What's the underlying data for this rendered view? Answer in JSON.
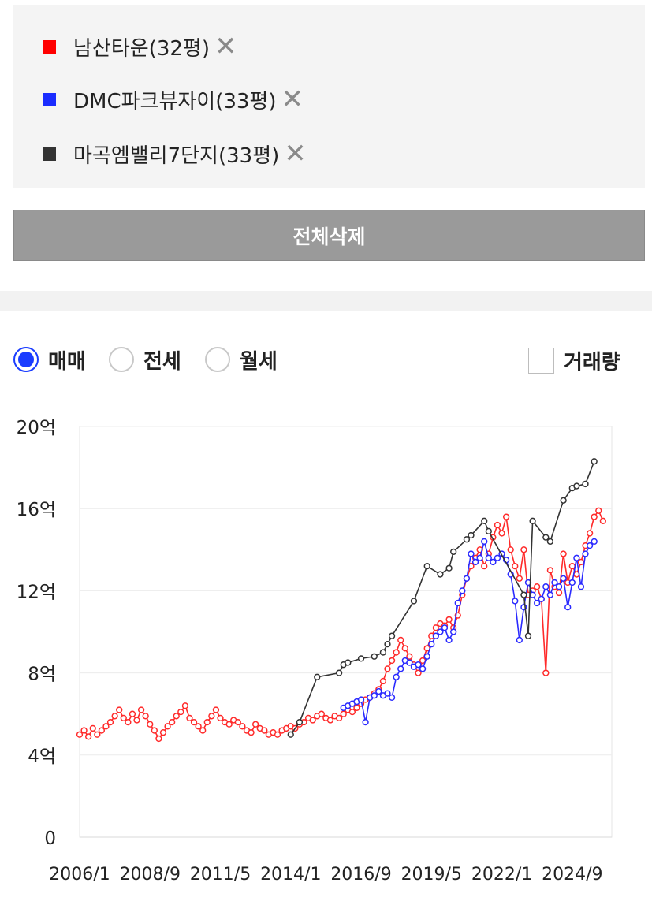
{
  "compare_list": {
    "items": [
      {
        "label": "남산타운(32평)",
        "color": "#ff0000",
        "remove_icon": "close-icon"
      },
      {
        "label": "DMC파크뷰자이(33평)",
        "color": "#1a2cff",
        "remove_icon": "close-icon"
      },
      {
        "label": "마곡엠밸리7단지(33평)",
        "color": "#333333",
        "remove_icon": "close-icon"
      }
    ],
    "clear_all_label": "전체삭제"
  },
  "controls": {
    "trade_types": [
      {
        "label": "매매",
        "checked": true
      },
      {
        "label": "전세",
        "checked": false
      },
      {
        "label": "월세",
        "checked": false
      }
    ],
    "volume": {
      "label": "거래량",
      "checked": false
    },
    "accent_color": "#1a3cff"
  },
  "chart_data": {
    "type": "line",
    "title": "",
    "xlabel": "",
    "ylabel": "",
    "xlim": [
      "2006/1",
      "2026/3"
    ],
    "ylim": [
      0,
      20
    ],
    "y_ticks": [
      {
        "value": 0,
        "label": "0"
      },
      {
        "value": 4,
        "label": "4억"
      },
      {
        "value": 8,
        "label": "8억"
      },
      {
        "value": 12,
        "label": "12억"
      },
      {
        "value": 16,
        "label": "16억"
      },
      {
        "value": 20,
        "label": "20억"
      }
    ],
    "x_ticks": [
      "2006/1",
      "2008/9",
      "2011/5",
      "2014/1",
      "2016/9",
      "2019/5",
      "2022/1",
      "2024/9"
    ],
    "grid": true,
    "series": [
      {
        "name": "남산타운(32평)",
        "color": "#ff2a2a",
        "marker": "circle-hollow",
        "points": [
          [
            "2006/1",
            5.0
          ],
          [
            "2006/3",
            5.2
          ],
          [
            "2006/5",
            4.9
          ],
          [
            "2006/7",
            5.3
          ],
          [
            "2006/9",
            5.0
          ],
          [
            "2006/11",
            5.2
          ],
          [
            "2007/1",
            5.4
          ],
          [
            "2007/3",
            5.6
          ],
          [
            "2007/5",
            5.9
          ],
          [
            "2007/7",
            6.2
          ],
          [
            "2007/9",
            5.8
          ],
          [
            "2007/11",
            5.6
          ],
          [
            "2008/1",
            6.0
          ],
          [
            "2008/3",
            5.7
          ],
          [
            "2008/5",
            6.2
          ],
          [
            "2008/7",
            5.9
          ],
          [
            "2008/9",
            5.5
          ],
          [
            "2008/11",
            5.2
          ],
          [
            "2009/1",
            4.8
          ],
          [
            "2009/3",
            5.1
          ],
          [
            "2009/5",
            5.4
          ],
          [
            "2009/7",
            5.6
          ],
          [
            "2009/9",
            5.9
          ],
          [
            "2009/11",
            6.1
          ],
          [
            "2010/1",
            6.4
          ],
          [
            "2010/3",
            5.8
          ],
          [
            "2010/5",
            5.6
          ],
          [
            "2010/7",
            5.4
          ],
          [
            "2010/9",
            5.2
          ],
          [
            "2010/11",
            5.6
          ],
          [
            "2011/1",
            5.9
          ],
          [
            "2011/3",
            6.2
          ],
          [
            "2011/5",
            5.8
          ],
          [
            "2011/7",
            5.6
          ],
          [
            "2011/9",
            5.5
          ],
          [
            "2011/11",
            5.7
          ],
          [
            "2012/1",
            5.6
          ],
          [
            "2012/3",
            5.4
          ],
          [
            "2012/5",
            5.2
          ],
          [
            "2012/7",
            5.1
          ],
          [
            "2012/9",
            5.5
          ],
          [
            "2012/11",
            5.3
          ],
          [
            "2013/1",
            5.2
          ],
          [
            "2013/3",
            5.0
          ],
          [
            "2013/5",
            5.1
          ],
          [
            "2013/7",
            5.0
          ],
          [
            "2013/9",
            5.2
          ],
          [
            "2013/11",
            5.3
          ],
          [
            "2014/1",
            5.4
          ],
          [
            "2014/3",
            5.3
          ],
          [
            "2014/5",
            5.5
          ],
          [
            "2014/7",
            5.6
          ],
          [
            "2014/9",
            5.8
          ],
          [
            "2014/11",
            5.7
          ],
          [
            "2015/1",
            5.9
          ],
          [
            "2015/3",
            6.0
          ],
          [
            "2015/5",
            5.8
          ],
          [
            "2015/7",
            5.7
          ],
          [
            "2015/9",
            5.9
          ],
          [
            "2015/11",
            5.8
          ],
          [
            "2016/1",
            6.0
          ],
          [
            "2016/3",
            6.2
          ],
          [
            "2016/5",
            6.1
          ],
          [
            "2016/7",
            6.3
          ],
          [
            "2016/9",
            6.5
          ],
          [
            "2016/11",
            6.7
          ],
          [
            "2017/1",
            6.8
          ],
          [
            "2017/3",
            7.0
          ],
          [
            "2017/5",
            7.2
          ],
          [
            "2017/7",
            7.6
          ],
          [
            "2017/9",
            8.2
          ],
          [
            "2017/11",
            8.6
          ],
          [
            "2018/1",
            9.0
          ],
          [
            "2018/3",
            9.6
          ],
          [
            "2018/5",
            9.2
          ],
          [
            "2018/7",
            8.8
          ],
          [
            "2018/9",
            8.4
          ],
          [
            "2018/11",
            8.0
          ],
          [
            "2019/1",
            8.6
          ],
          [
            "2019/3",
            9.2
          ],
          [
            "2019/5",
            9.8
          ],
          [
            "2019/7",
            10.2
          ],
          [
            "2019/9",
            10.4
          ],
          [
            "2019/11",
            10.3
          ],
          [
            "2020/1",
            10.6
          ],
          [
            "2020/3",
            10.2
          ],
          [
            "2020/5",
            10.8
          ],
          [
            "2020/7",
            11.8
          ],
          [
            "2020/9",
            12.6
          ],
          [
            "2020/11",
            13.2
          ],
          [
            "2021/1",
            13.6
          ],
          [
            "2021/3",
            14.0
          ],
          [
            "2021/5",
            13.2
          ],
          [
            "2021/7",
            13.8
          ],
          [
            "2021/9",
            14.6
          ],
          [
            "2021/11",
            15.2
          ],
          [
            "2022/1",
            14.8
          ],
          [
            "2022/3",
            15.6
          ],
          [
            "2022/5",
            14.0
          ],
          [
            "2022/7",
            13.2
          ],
          [
            "2022/9",
            12.6
          ],
          [
            "2022/11",
            14.0
          ],
          [
            "2023/1",
            11.8
          ],
          [
            "2023/3",
            12.0
          ],
          [
            "2023/5",
            12.2
          ],
          [
            "2023/7",
            11.6
          ],
          [
            "2023/9",
            8.0
          ],
          [
            "2023/11",
            13.0
          ],
          [
            "2024/1",
            12.2
          ],
          [
            "2024/3",
            11.9
          ],
          [
            "2024/5",
            13.8
          ],
          [
            "2024/7",
            12.4
          ],
          [
            "2024/9",
            13.2
          ],
          [
            "2024/11",
            12.8
          ],
          [
            "2025/1",
            13.4
          ],
          [
            "2025/3",
            14.2
          ],
          [
            "2025/5",
            14.8
          ],
          [
            "2025/7",
            15.6
          ],
          [
            "2025/9",
            15.9
          ],
          [
            "2025/11",
            15.4
          ]
        ]
      },
      {
        "name": "DMC파크뷰자이(33평)",
        "color": "#2a2aff",
        "marker": "circle-hollow",
        "points": [
          [
            "2016/1",
            6.3
          ],
          [
            "2016/3",
            6.4
          ],
          [
            "2016/5",
            6.5
          ],
          [
            "2016/7",
            6.6
          ],
          [
            "2016/9",
            6.7
          ],
          [
            "2016/11",
            5.6
          ],
          [
            "2017/1",
            6.8
          ],
          [
            "2017/3",
            6.9
          ],
          [
            "2017/5",
            7.1
          ],
          [
            "2017/7",
            6.9
          ],
          [
            "2017/9",
            7.0
          ],
          [
            "2017/11",
            6.8
          ],
          [
            "2018/1",
            7.8
          ],
          [
            "2018/3",
            8.2
          ],
          [
            "2018/5",
            8.6
          ],
          [
            "2018/7",
            8.5
          ],
          [
            "2018/9",
            8.3
          ],
          [
            "2018/11",
            8.4
          ],
          [
            "2019/1",
            8.2
          ],
          [
            "2019/3",
            8.8
          ],
          [
            "2019/5",
            9.4
          ],
          [
            "2019/7",
            9.8
          ],
          [
            "2019/9",
            10.0
          ],
          [
            "2019/11",
            10.2
          ],
          [
            "2020/1",
            9.6
          ],
          [
            "2020/3",
            10.0
          ],
          [
            "2020/5",
            11.4
          ],
          [
            "2020/7",
            12.0
          ],
          [
            "2020/9",
            12.6
          ],
          [
            "2020/11",
            13.8
          ],
          [
            "2021/1",
            13.4
          ],
          [
            "2021/3",
            13.6
          ],
          [
            "2021/5",
            14.4
          ],
          [
            "2021/7",
            13.6
          ],
          [
            "2021/9",
            13.4
          ],
          [
            "2021/11",
            13.6
          ],
          [
            "2022/1",
            13.8
          ],
          [
            "2022/3",
            13.5
          ],
          [
            "2022/5",
            12.8
          ],
          [
            "2022/7",
            11.5
          ],
          [
            "2022/9",
            9.6
          ],
          [
            "2022/11",
            11.2
          ],
          [
            "2023/1",
            12.4
          ],
          [
            "2023/3",
            11.8
          ],
          [
            "2023/5",
            11.4
          ],
          [
            "2023/7",
            11.6
          ],
          [
            "2023/9",
            12.2
          ],
          [
            "2023/11",
            11.8
          ],
          [
            "2024/1",
            12.4
          ],
          [
            "2024/3",
            12.2
          ],
          [
            "2024/5",
            12.6
          ],
          [
            "2024/7",
            11.2
          ],
          [
            "2024/9",
            12.4
          ],
          [
            "2024/11",
            13.6
          ],
          [
            "2025/1",
            12.2
          ],
          [
            "2025/3",
            13.8
          ],
          [
            "2025/5",
            14.2
          ],
          [
            "2025/7",
            14.4
          ]
        ]
      },
      {
        "name": "마곡엠밸리7단지(33평)",
        "color": "#333333",
        "marker": "circle-hollow",
        "points": [
          [
            "2014/1",
            5.0
          ],
          [
            "2014/5",
            5.6
          ],
          [
            "2015/1",
            7.8
          ],
          [
            "2015/11",
            8.0
          ],
          [
            "2016/1",
            8.4
          ],
          [
            "2016/3",
            8.5
          ],
          [
            "2016/9",
            8.7
          ],
          [
            "2017/3",
            8.8
          ],
          [
            "2017/7",
            9.0
          ],
          [
            "2017/9",
            9.4
          ],
          [
            "2017/11",
            9.8
          ],
          [
            "2018/9",
            11.5
          ],
          [
            "2019/3",
            13.2
          ],
          [
            "2019/9",
            12.8
          ],
          [
            "2020/1",
            13.1
          ],
          [
            "2020/3",
            13.9
          ],
          [
            "2020/9",
            14.5
          ],
          [
            "2020/11",
            14.7
          ],
          [
            "2021/5",
            15.4
          ],
          [
            "2021/7",
            14.9
          ],
          [
            "2022/11",
            11.8
          ],
          [
            "2023/1",
            9.8
          ],
          [
            "2023/3",
            15.4
          ],
          [
            "2023/9",
            14.6
          ],
          [
            "2023/11",
            14.4
          ],
          [
            "2024/5",
            16.4
          ],
          [
            "2024/9",
            17.0
          ],
          [
            "2024/11",
            17.1
          ],
          [
            "2025/3",
            17.2
          ],
          [
            "2025/7",
            18.3
          ]
        ]
      }
    ]
  }
}
